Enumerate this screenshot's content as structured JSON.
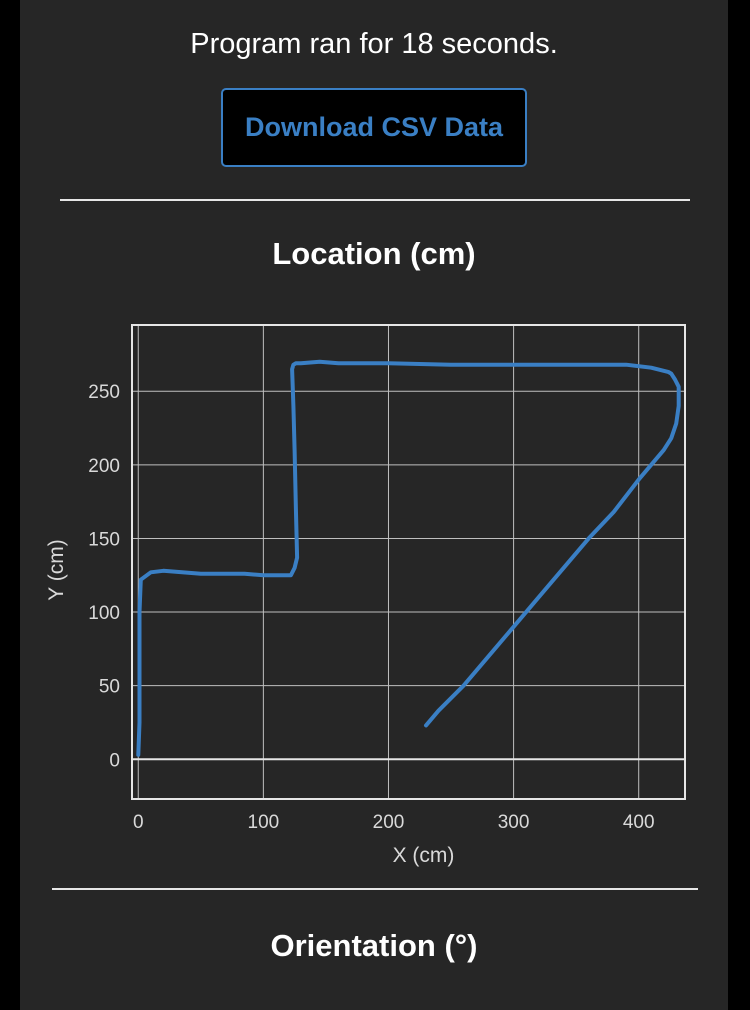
{
  "status": {
    "runtime_text": "Program ran for 18 seconds."
  },
  "actions": {
    "download_label": "Download CSV Data"
  },
  "sections": {
    "location_title": "Location (cm)",
    "orientation_title": "Orientation (°)"
  },
  "colors": {
    "accent": "#3a7fc4",
    "panel": "#262626",
    "page": "#000000",
    "grid": "#bfbfbf",
    "text": "#ffffff"
  },
  "chart_data": {
    "type": "line",
    "title": "",
    "xlabel": "X (cm)",
    "ylabel": "Y (cm)",
    "xlim": [
      -5,
      437
    ],
    "ylim": [
      -27,
      295
    ],
    "xticks": [
      0,
      100,
      200,
      300,
      400
    ],
    "yticks": [
      0,
      50,
      100,
      150,
      200,
      250
    ],
    "grid": true,
    "legend": "none",
    "series": [
      {
        "name": "",
        "color": "#3a7fc4",
        "x": [
          0,
          1,
          1,
          1,
          2,
          10,
          20,
          50,
          85,
          100,
          122,
          125,
          127,
          126,
          125,
          124,
          123,
          124,
          126,
          130,
          145,
          160,
          200,
          250,
          300,
          330,
          390,
          410,
          424,
          426,
          429,
          432,
          432,
          430,
          426,
          420,
          400,
          380,
          360,
          340,
          320,
          300,
          280,
          260,
          240,
          230
        ],
        "y": [
          3,
          25,
          60,
          100,
          122,
          127,
          128,
          126,
          126,
          125,
          125,
          130,
          137,
          170,
          210,
          240,
          265,
          268,
          269,
          269,
          270,
          269,
          269,
          268,
          268,
          268,
          268,
          266,
          263,
          262,
          258,
          253,
          240,
          228,
          218,
          210,
          190,
          168,
          150,
          130,
          110,
          90,
          70,
          50,
          33,
          23
        ]
      }
    ]
  }
}
